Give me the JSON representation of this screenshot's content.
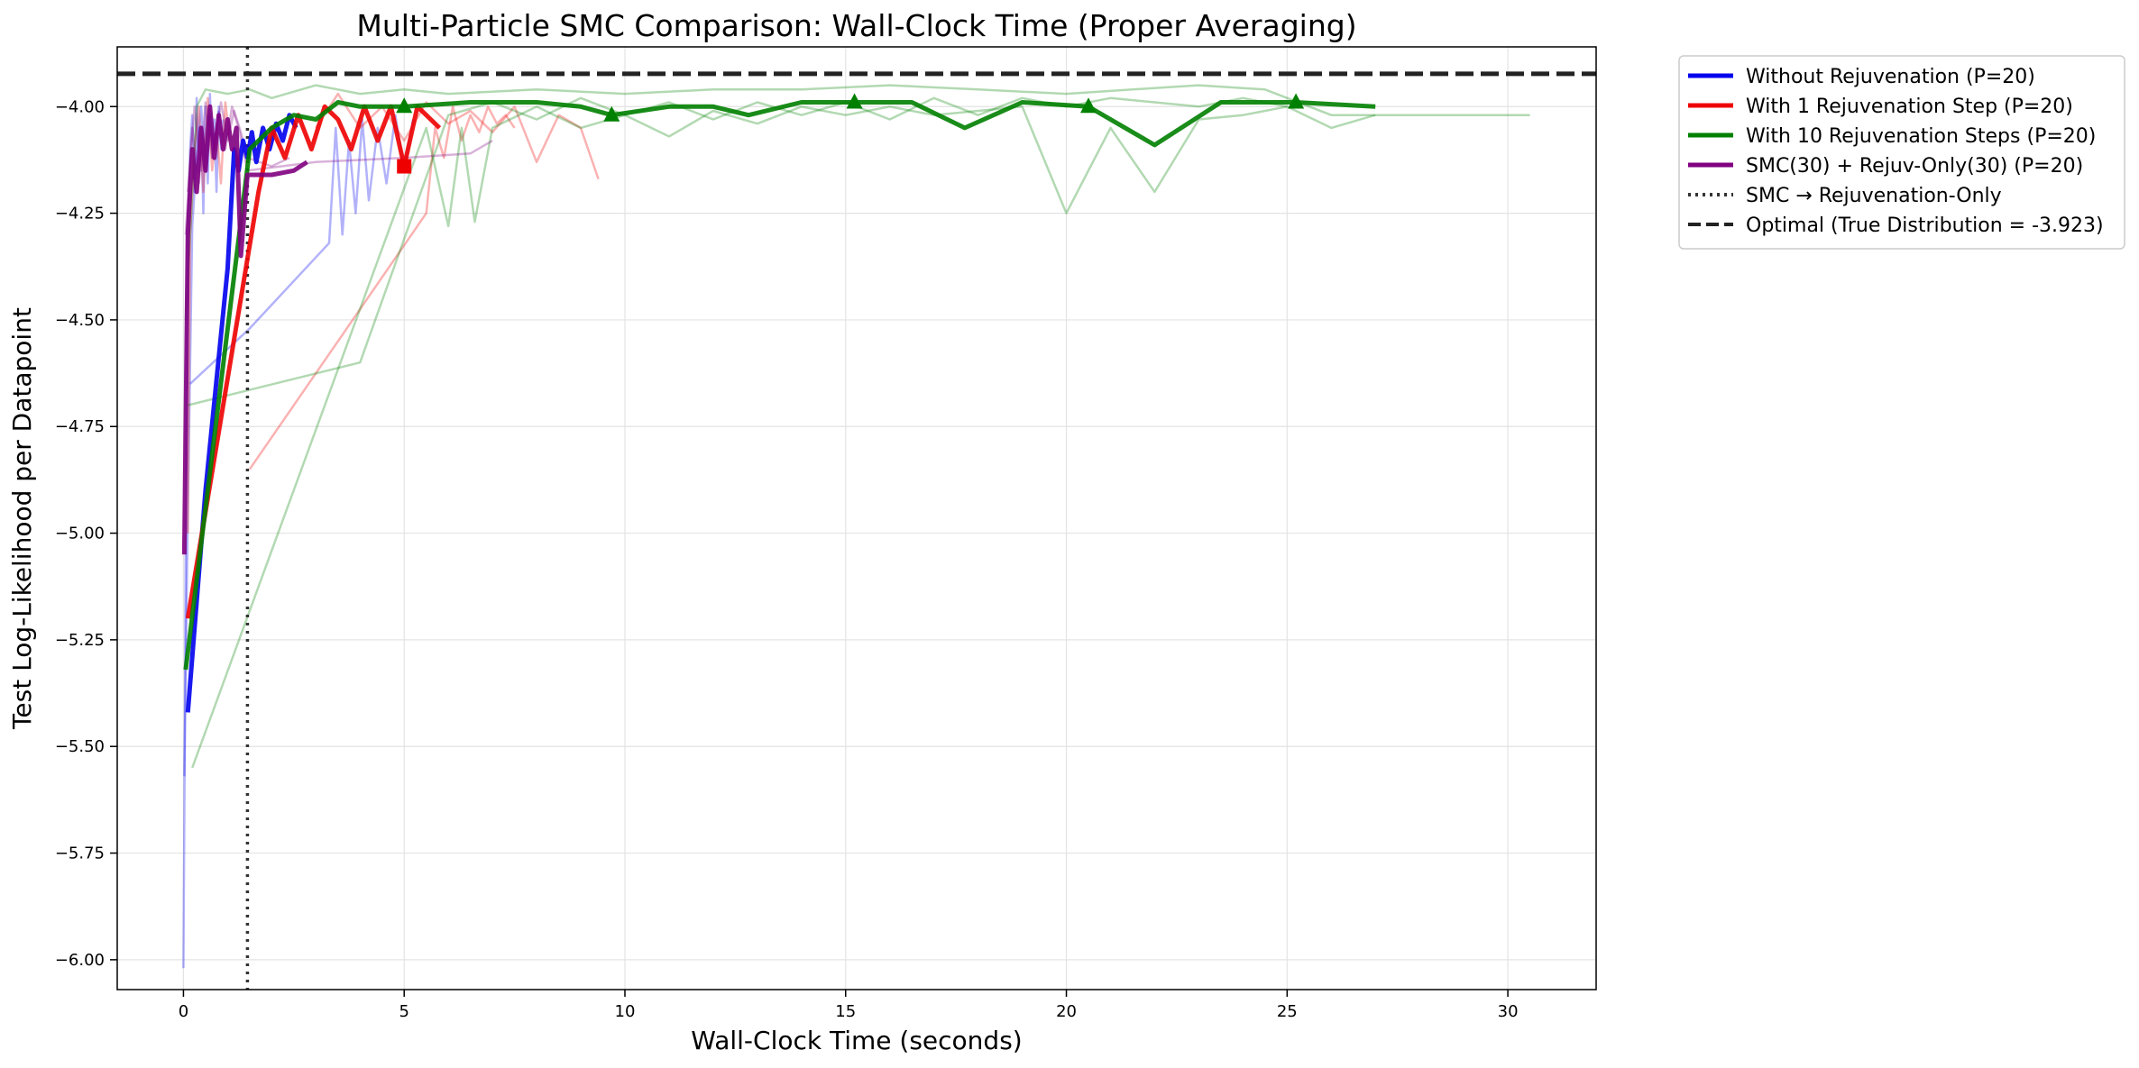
{
  "chart_data": {
    "type": "line",
    "title": "Multi-Particle SMC Comparison: Wall-Clock Time (Proper Averaging)",
    "xlabel": "Wall-Clock Time (seconds)",
    "ylabel": "Test Log-Likelihood per Datapoint",
    "xlim": [
      -1.5,
      32.0
    ],
    "ylim": [
      -6.07,
      -3.86
    ],
    "x_ticks": [
      0,
      5,
      10,
      15,
      20,
      25,
      30
    ],
    "y_ticks": [
      -6.0,
      -5.75,
      -5.5,
      -5.25,
      -5.0,
      -4.75,
      -4.5,
      -4.25,
      -4.0
    ],
    "x_tick_labels": [
      "0",
      "5",
      "10",
      "15",
      "20",
      "25",
      "30"
    ],
    "y_tick_labels": [
      "−6.00",
      "−5.75",
      "−5.50",
      "−5.25",
      "−5.00",
      "−4.75",
      "−4.50",
      "−4.25",
      "−4.00"
    ],
    "grid": true,
    "legend_position": "outside-right-top",
    "optimal_value": -3.923,
    "switch_time": 1.45,
    "series": [
      {
        "name": "Without Rejuvenation (P=20)",
        "color": "#0000ee",
        "width": 5,
        "x": [
          0.1,
          0.5,
          1.0,
          1.15,
          1.25,
          1.35,
          1.45,
          1.55,
          1.65,
          1.8,
          1.95,
          2.1,
          2.25,
          2.4,
          2.55
        ],
        "y": [
          -5.42,
          -4.9,
          -4.38,
          -4.1,
          -4.15,
          -4.08,
          -4.12,
          -4.06,
          -4.13,
          -4.05,
          -4.1,
          -4.04,
          -4.08,
          -4.02,
          -4.05
        ],
        "runs": [
          {
            "x": [
              0.0,
              0.03,
              0.06,
              0.1,
              0.15,
              0.2,
              0.25,
              0.3,
              0.35,
              0.4,
              0.45,
              0.5,
              0.55,
              0.6,
              0.65,
              0.7,
              0.75,
              0.8,
              0.85,
              0.9
            ],
            "y": [
              -6.02,
              -5.5,
              -4.8,
              -4.3,
              -4.1,
              -4.02,
              -4.2,
              -3.98,
              -4.15,
              -4.05,
              -4.25,
              -4.0,
              -4.18,
              -3.97,
              -4.12,
              -4.03,
              -4.2,
              -4.0,
              -4.1,
              -4.03
            ]
          },
          {
            "x": [
              0.15,
              1.5,
              3.3,
              3.45,
              3.6,
              3.75,
              3.9,
              4.05,
              4.2,
              4.4,
              4.6,
              4.8,
              5.0,
              5.2
            ],
            "y": [
              -4.65,
              -4.52,
              -4.32,
              -4.05,
              -4.3,
              -4.08,
              -4.25,
              -4.03,
              -4.22,
              -4.05,
              -4.18,
              -4.02,
              -4.15,
              -4.03
            ]
          },
          {
            "x": [
              0.02,
              0.1,
              0.2,
              0.3,
              0.4,
              0.5,
              0.6,
              0.7,
              0.8
            ],
            "y": [
              -5.57,
              -4.95,
              -4.28,
              -4.12,
              -4.0,
              -4.15,
              -4.02,
              -4.1,
              -4.01
            ]
          }
        ]
      },
      {
        "name": "With 1 Rejuvenation Step (P=20)",
        "color": "#ee0000",
        "width": 5,
        "marker": "square",
        "x": [
          0.1,
          1.7,
          2.0,
          2.3,
          2.6,
          2.9,
          3.2,
          3.5,
          3.8,
          4.1,
          4.4,
          4.7,
          5.0,
          5.3,
          5.5,
          5.8
        ],
        "y": [
          -5.2,
          -4.2,
          -4.05,
          -4.12,
          -4.02,
          -4.1,
          -4.0,
          -4.03,
          -4.1,
          -4.0,
          -4.08,
          -4.0,
          -4.14,
          -4.0,
          -4.02,
          -4.05
        ],
        "marker_x": [
          5.0
        ],
        "marker_y": [
          -4.14
        ],
        "runs": [
          {
            "x": [
              0.1,
              0.15,
              0.25,
              0.35,
              0.45,
              0.55,
              0.65,
              0.75,
              0.85,
              0.95,
              1.05
            ],
            "y": [
              -5.0,
              -4.3,
              -4.1,
              -4.0,
              -4.2,
              -3.98,
              -4.15,
              -4.05,
              -4.18,
              -3.99,
              -4.08
            ]
          },
          {
            "x": [
              1.5,
              5.5,
              5.7,
              5.9,
              6.1,
              6.3,
              6.5,
              6.7,
              6.9,
              7.1,
              7.3,
              7.5
            ],
            "y": [
              -4.85,
              -4.25,
              -4.05,
              -4.12,
              -4.0,
              -4.08,
              -4.02,
              -4.06,
              -4.0,
              -4.04,
              -4.02,
              -4.05
            ]
          },
          {
            "x": [
              3.0,
              3.5,
              4.0,
              4.5,
              5.0,
              5.5,
              6.0,
              6.5,
              7.0,
              7.5,
              8.0,
              8.5,
              9.0,
              9.4
            ],
            "y": [
              -4.05,
              -3.97,
              -4.05,
              -4.0,
              -4.08,
              -3.99,
              -4.04,
              -4.01,
              -4.06,
              -4.0,
              -4.13,
              -4.02,
              -4.05,
              -4.17
            ]
          }
        ]
      },
      {
        "name": "With 10 Rejuvenation Steps (P=20)",
        "color": "#008000",
        "width": 5,
        "marker": "triangle",
        "x": [
          0.05,
          1.5,
          2.0,
          2.5,
          3.0,
          3.5,
          4.0,
          5.0,
          6.5,
          8.0,
          9.0,
          9.7,
          11.0,
          12.0,
          12.8,
          14.0,
          15.2,
          16.5,
          17.7,
          19.0,
          20.5,
          22.0,
          23.5,
          25.2,
          27.0
        ],
        "y": [
          -5.32,
          -4.1,
          -4.05,
          -4.02,
          -4.03,
          -3.99,
          -4.0,
          -4.0,
          -3.99,
          -3.99,
          -4.0,
          -4.02,
          -4.0,
          -4.0,
          -4.02,
          -3.99,
          -3.99,
          -3.99,
          -4.05,
          -3.99,
          -4.0,
          -4.09,
          -3.99,
          -3.99,
          -4.0
        ],
        "marker_x": [
          5.0,
          9.7,
          15.2,
          20.5,
          25.2
        ],
        "marker_y": [
          -4.0,
          -4.02,
          -3.99,
          -4.0,
          -3.99
        ],
        "runs": [
          {
            "x": [
              0.2,
              5.5,
              6.0,
              6.3,
              6.6,
              7.0,
              8.0,
              9.0,
              10.0,
              11.0,
              12.0,
              13.0,
              14.0,
              15.0,
              16.0,
              17.0,
              18.0,
              19.0,
              20.0,
              21.0,
              22.0,
              23.0,
              24.0,
              25.0,
              26.0,
              27.0
            ],
            "y": [
              -5.55,
              -4.05,
              -4.28,
              -4.05,
              -4.27,
              -4.05,
              -4.0,
              -4.05,
              -4.02,
              -4.07,
              -4.01,
              -4.04,
              -4.0,
              -4.02,
              -4.0,
              -4.02,
              -4.01,
              -4.0,
              -4.25,
              -4.05,
              -4.2,
              -4.03,
              -4.02,
              -4.0,
              -4.05,
              -4.02
            ]
          },
          {
            "x": [
              0.05,
              0.3,
              0.5,
              1.0,
              1.5,
              2.0,
              3.0,
              4.0,
              5.0,
              6.0,
              8.0,
              10.0,
              12.0,
              14.0,
              16.0,
              18.0,
              20.0,
              21.5,
              23.0,
              24.5,
              26.0,
              28.0,
              30.5
            ],
            "y": [
              -4.5,
              -4.0,
              -3.96,
              -3.97,
              -3.96,
              -3.98,
              -3.95,
              -3.97,
              -3.96,
              -3.97,
              -3.96,
              -3.97,
              -3.96,
              -3.96,
              -3.95,
              -3.96,
              -3.97,
              -3.96,
              -3.95,
              -3.96,
              -4.02,
              -4.02,
              -4.02
            ]
          },
          {
            "x": [
              0.1,
              4.0,
              6.0,
              7.0,
              8.0,
              9.0,
              10.0,
              11.0,
              12.0,
              13.0,
              14.0,
              15.0,
              16.0,
              17.0,
              18.0,
              19.0,
              20.0,
              21.0,
              22.0,
              23.0,
              24.0,
              25.0
            ],
            "y": [
              -4.7,
              -4.6,
              -4.02,
              -3.99,
              -4.03,
              -3.98,
              -4.02,
              -3.99,
              -4.03,
              -3.99,
              -4.02,
              -3.99,
              -4.03,
              -3.98,
              -4.02,
              -3.98,
              -4.0,
              -3.98,
              -3.99,
              -4.0,
              -3.98,
              -4.0
            ]
          }
        ]
      },
      {
        "name": "SMC(30) + Rejuv-Only(30) (P=20)",
        "color": "#800080",
        "width": 5,
        "x": [
          0.02,
          0.1,
          0.2,
          0.3,
          0.4,
          0.5,
          0.6,
          0.7,
          0.8,
          0.9,
          1.0,
          1.1,
          1.2,
          1.3,
          1.45,
          2.0,
          2.5,
          2.8
        ],
        "y": [
          -5.05,
          -4.3,
          -4.1,
          -4.2,
          -4.05,
          -4.15,
          -4.0,
          -4.12,
          -4.02,
          -4.1,
          -4.03,
          -4.1,
          -4.05,
          -4.35,
          -4.16,
          -4.16,
          -4.15,
          -4.13
        ],
        "runs": [
          {
            "x": [
              0.05,
              0.2,
              0.35,
              0.5,
              0.65,
              0.8,
              0.95,
              1.1,
              1.25,
              1.45,
              3.0,
              5.0,
              6.5,
              7.0
            ],
            "y": [
              -4.3,
              -4.05,
              -4.18,
              -3.99,
              -4.12,
              -4.02,
              -4.1,
              -4.0,
              -4.05,
              -4.15,
              -4.13,
              -4.12,
              -4.11,
              -4.08
            ]
          },
          {
            "x": [
              0.1,
              0.25,
              0.4,
              0.55,
              0.7,
              0.85,
              1.0,
              1.15,
              1.3,
              1.45,
              2.0,
              2.4
            ],
            "y": [
              -4.2,
              -4.0,
              -4.15,
              -4.02,
              -4.1,
              -3.99,
              -4.08,
              -4.01,
              -4.06,
              -4.12,
              -4.14,
              -4.12
            ]
          }
        ]
      }
    ],
    "legend": [
      {
        "label": "Without Rejuvenation (P=20)",
        "color": "#0000ee",
        "style": "solid"
      },
      {
        "label": "With 1 Rejuvenation Step (P=20)",
        "color": "#ee0000",
        "style": "solid"
      },
      {
        "label": "With 10 Rejuvenation Steps (P=20)",
        "color": "#008000",
        "style": "solid"
      },
      {
        "label": "SMC(30) + Rejuv-Only(30) (P=20)",
        "color": "#800080",
        "style": "solid"
      },
      {
        "label": "SMC → Rejuvenation-Only",
        "color": "#333333",
        "style": "dotted"
      },
      {
        "label": "Optimal (True Distribution = -3.923)",
        "color": "#222222",
        "style": "dashed"
      }
    ]
  }
}
